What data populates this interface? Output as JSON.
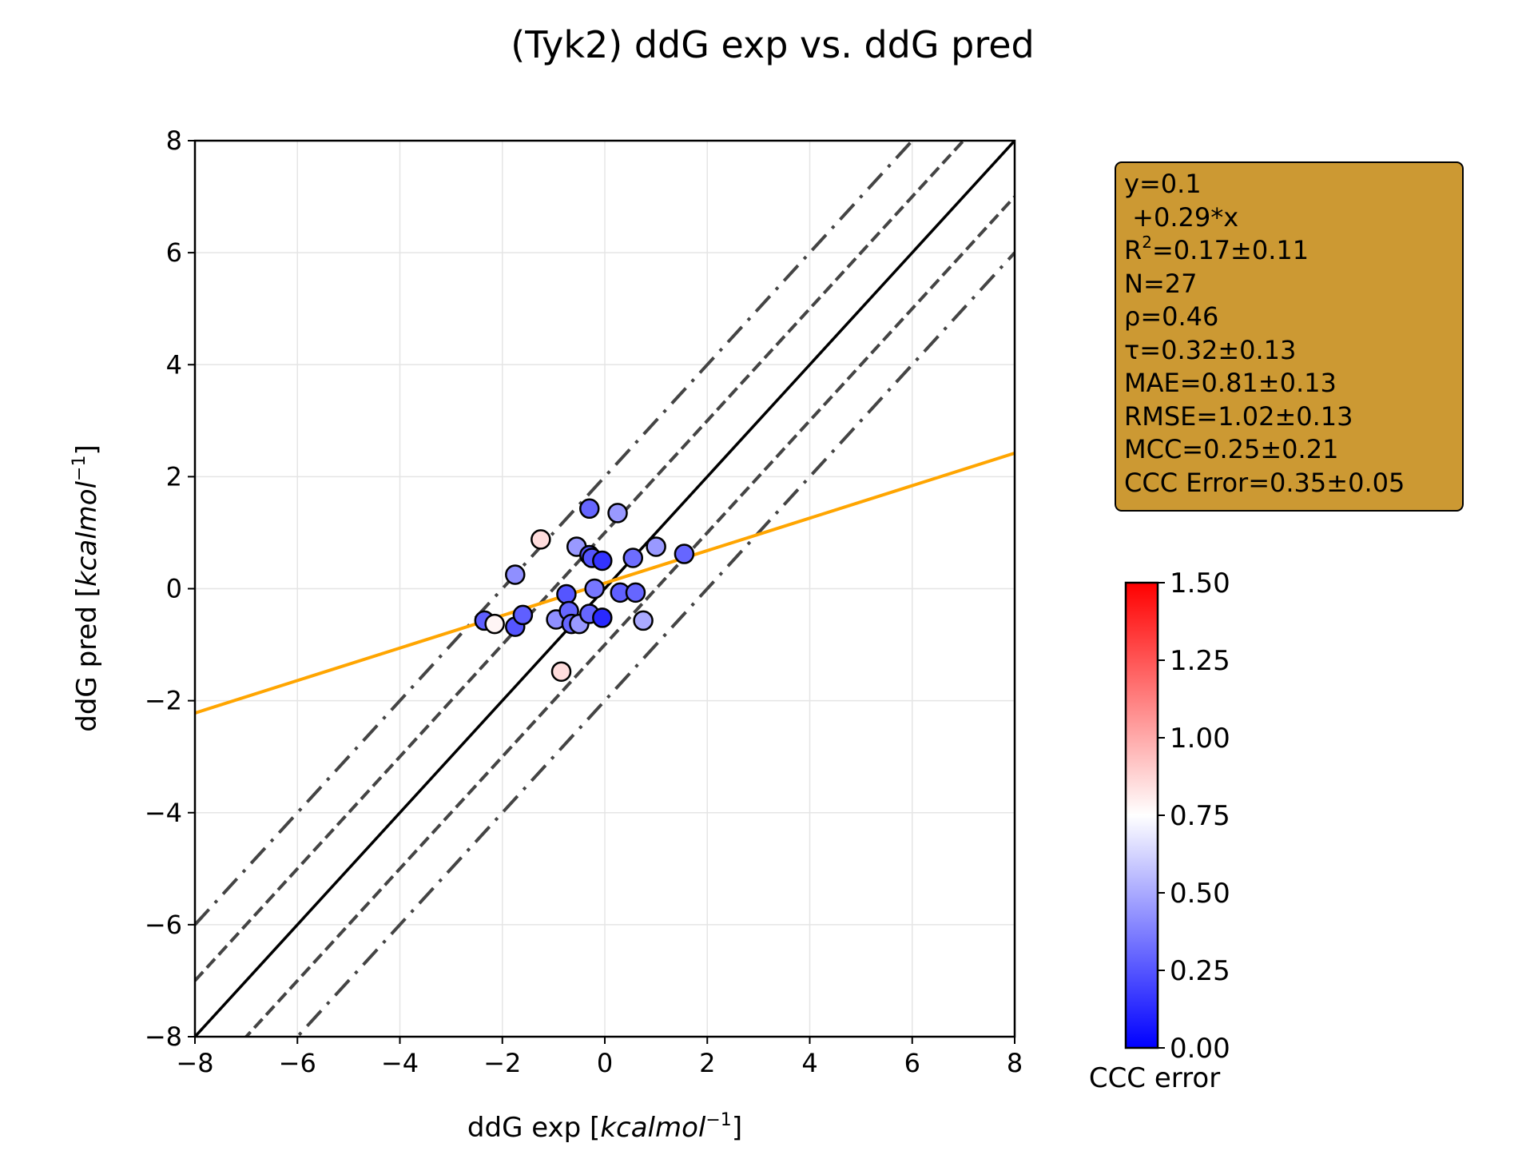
{
  "colors": {
    "point_cmap": [
      "#0000ff",
      "#ffffff",
      "#ff0000"
    ],
    "fit_line": "#ffa500",
    "identity_line": "#000000",
    "band_lines": "#444444",
    "stats_box_bg": "#cc9933",
    "grid": "#e5e5e5"
  },
  "stats_box": {
    "line1": "y=0.1",
    "line2": " +0.29*x",
    "r2_prefix": "R",
    "r2_sup": "2",
    "r2_value": "=0.17±0.11",
    "n": "N=27",
    "rho": "ρ=0.46",
    "tau": "τ=0.32±0.13",
    "mae": "MAE=0.81±0.13",
    "rmse": "RMSE=1.02±0.13",
    "mcc": "MCC=0.25±0.21",
    "ccc": "CCC Error=0.35±0.05"
  },
  "chart_data": {
    "type": "scatter",
    "title": "(Tyk2) ddG exp vs. ddG pred",
    "xlabel": "ddG exp [kcalmol⁻¹]",
    "xlabel_plain": "ddG exp [",
    "xlabel_italic": "kcalmol",
    "xlabel_sup": "−1",
    "xlabel_close": "]",
    "ylabel_plain": "ddG pred [",
    "ylabel_italic": "kcalmol",
    "ylabel_sup": "−1",
    "ylabel_close": "]",
    "xlim": [
      -8,
      8
    ],
    "ylim": [
      -8,
      8
    ],
    "xticks": [
      -8,
      -6,
      -4,
      -2,
      0,
      2,
      4,
      6,
      8
    ],
    "yticks": [
      -8,
      -6,
      -4,
      -2,
      0,
      2,
      4,
      6,
      8
    ],
    "xtick_labels": [
      "−8",
      "−6",
      "−4",
      "−2",
      "0",
      "2",
      "4",
      "6",
      "8"
    ],
    "ytick_labels": [
      "−8",
      "−6",
      "−4",
      "−2",
      "0",
      "2",
      "4",
      "6",
      "8"
    ],
    "grid": true,
    "fit_line": {
      "intercept": 0.1,
      "slope": 0.29
    },
    "identity_line": true,
    "dashed_offsets": [
      -1,
      1
    ],
    "dashdot_offsets": [
      -2,
      2
    ],
    "colorbar": {
      "label": "CCC error",
      "range": [
        0,
        1.5
      ],
      "ticks": [
        0.0,
        0.25,
        0.5,
        0.75,
        1.0,
        1.25,
        1.5
      ],
      "tick_labels": [
        "0.00",
        "0.25",
        "0.50",
        "0.75",
        "1.00",
        "1.25",
        "1.50"
      ]
    },
    "points": [
      {
        "x": -2.35,
        "y": -0.57,
        "c": 0.28
      },
      {
        "x": -2.15,
        "y": -0.63,
        "c": 0.78
      },
      {
        "x": -1.75,
        "y": 0.25,
        "c": 0.42
      },
      {
        "x": -1.75,
        "y": -0.68,
        "c": 0.25
      },
      {
        "x": -1.6,
        "y": -0.47,
        "c": 0.28
      },
      {
        "x": -1.25,
        "y": 0.88,
        "c": 0.85
      },
      {
        "x": -0.95,
        "y": -0.55,
        "c": 0.42
      },
      {
        "x": -0.85,
        "y": -1.48,
        "c": 0.85
      },
      {
        "x": -0.75,
        "y": -0.1,
        "c": 0.25
      },
      {
        "x": -0.7,
        "y": -0.4,
        "c": 0.3
      },
      {
        "x": -0.65,
        "y": -0.63,
        "c": 0.3
      },
      {
        "x": -0.55,
        "y": 0.75,
        "c": 0.45
      },
      {
        "x": -0.5,
        "y": -0.63,
        "c": 0.45
      },
      {
        "x": -0.3,
        "y": 1.43,
        "c": 0.3
      },
      {
        "x": -0.3,
        "y": 0.6,
        "c": 0.25
      },
      {
        "x": -0.3,
        "y": -0.45,
        "c": 0.3
      },
      {
        "x": -0.25,
        "y": 0.55,
        "c": 0.25
      },
      {
        "x": -0.2,
        "y": 0.0,
        "c": 0.35
      },
      {
        "x": -0.05,
        "y": 0.5,
        "c": 0.15
      },
      {
        "x": -0.05,
        "y": -0.52,
        "c": 0.12
      },
      {
        "x": 0.25,
        "y": 1.35,
        "c": 0.45
      },
      {
        "x": 0.3,
        "y": -0.07,
        "c": 0.28
      },
      {
        "x": 0.55,
        "y": 0.55,
        "c": 0.32
      },
      {
        "x": 0.6,
        "y": -0.07,
        "c": 0.3
      },
      {
        "x": 0.75,
        "y": -0.57,
        "c": 0.5
      },
      {
        "x": 1.0,
        "y": 0.75,
        "c": 0.45
      },
      {
        "x": 1.55,
        "y": 0.62,
        "c": 0.3
      }
    ]
  }
}
